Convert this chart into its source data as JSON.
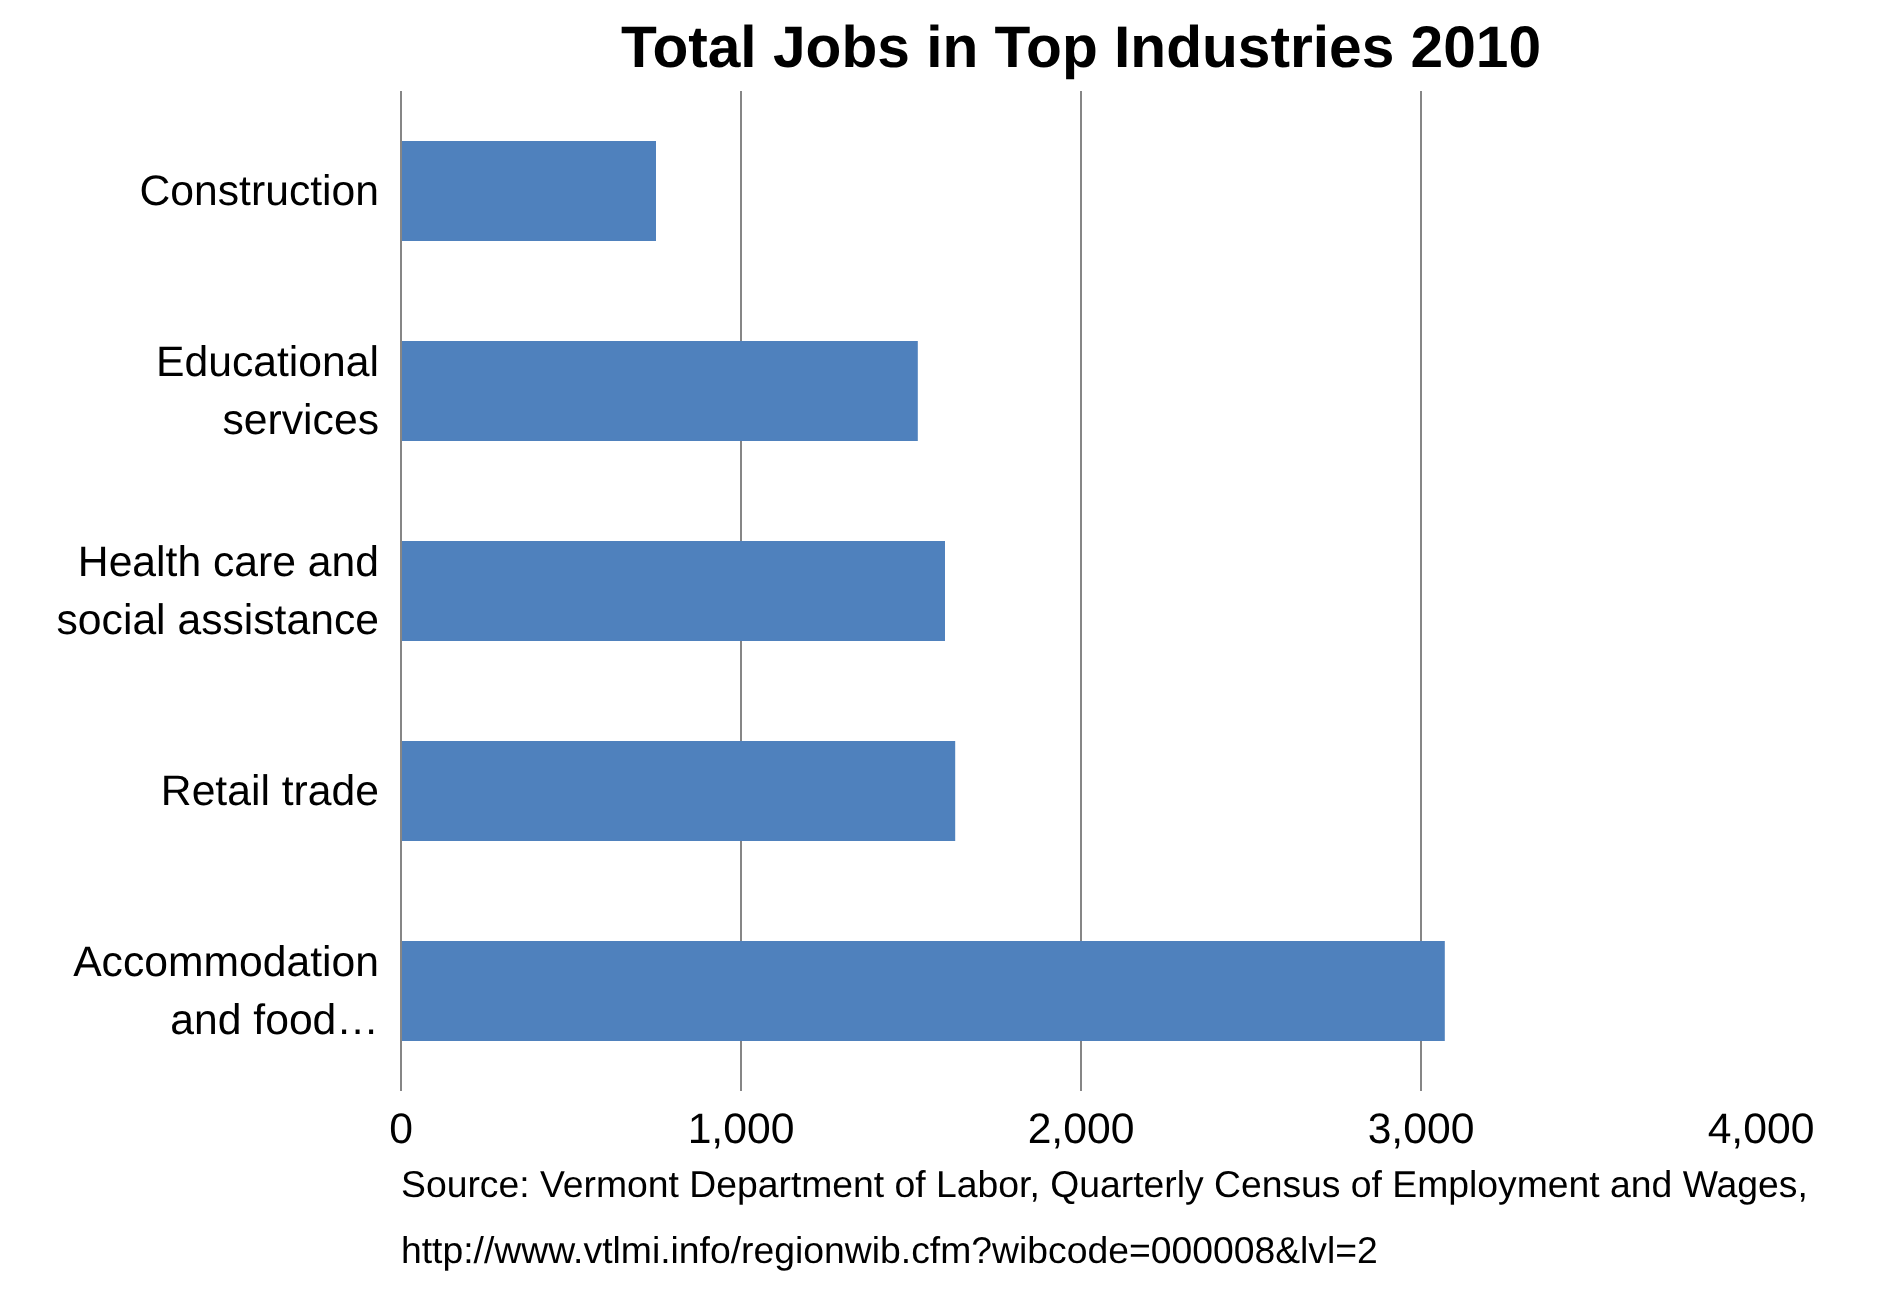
{
  "chart_data": {
    "type": "bar",
    "orientation": "horizontal",
    "title": "Total Jobs in Top Industries 2010",
    "categories": [
      "Construction",
      "Educational services",
      "Health care and social assistance",
      "Retail trade",
      "Accommodation and food…"
    ],
    "values": [
      750,
      1520,
      1600,
      1630,
      3070
    ],
    "color": "#4f81bd",
    "xlim": [
      0,
      4000
    ],
    "xticks": [
      {
        "value": 0,
        "label": "0"
      },
      {
        "value": 1000,
        "label": "1,000"
      },
      {
        "value": 2000,
        "label": "2,000"
      },
      {
        "value": 3000,
        "label": "3,000"
      },
      {
        "value": 4000,
        "label": "4,000"
      }
    ],
    "grid": "x",
    "annotations": [
      "Source: Vermont Department of Labor, Quarterly Census of Employment and Wages,",
      "http://www.vtlmi.info/regionwib.cfm?wibcode=000008&lvl=2"
    ]
  }
}
